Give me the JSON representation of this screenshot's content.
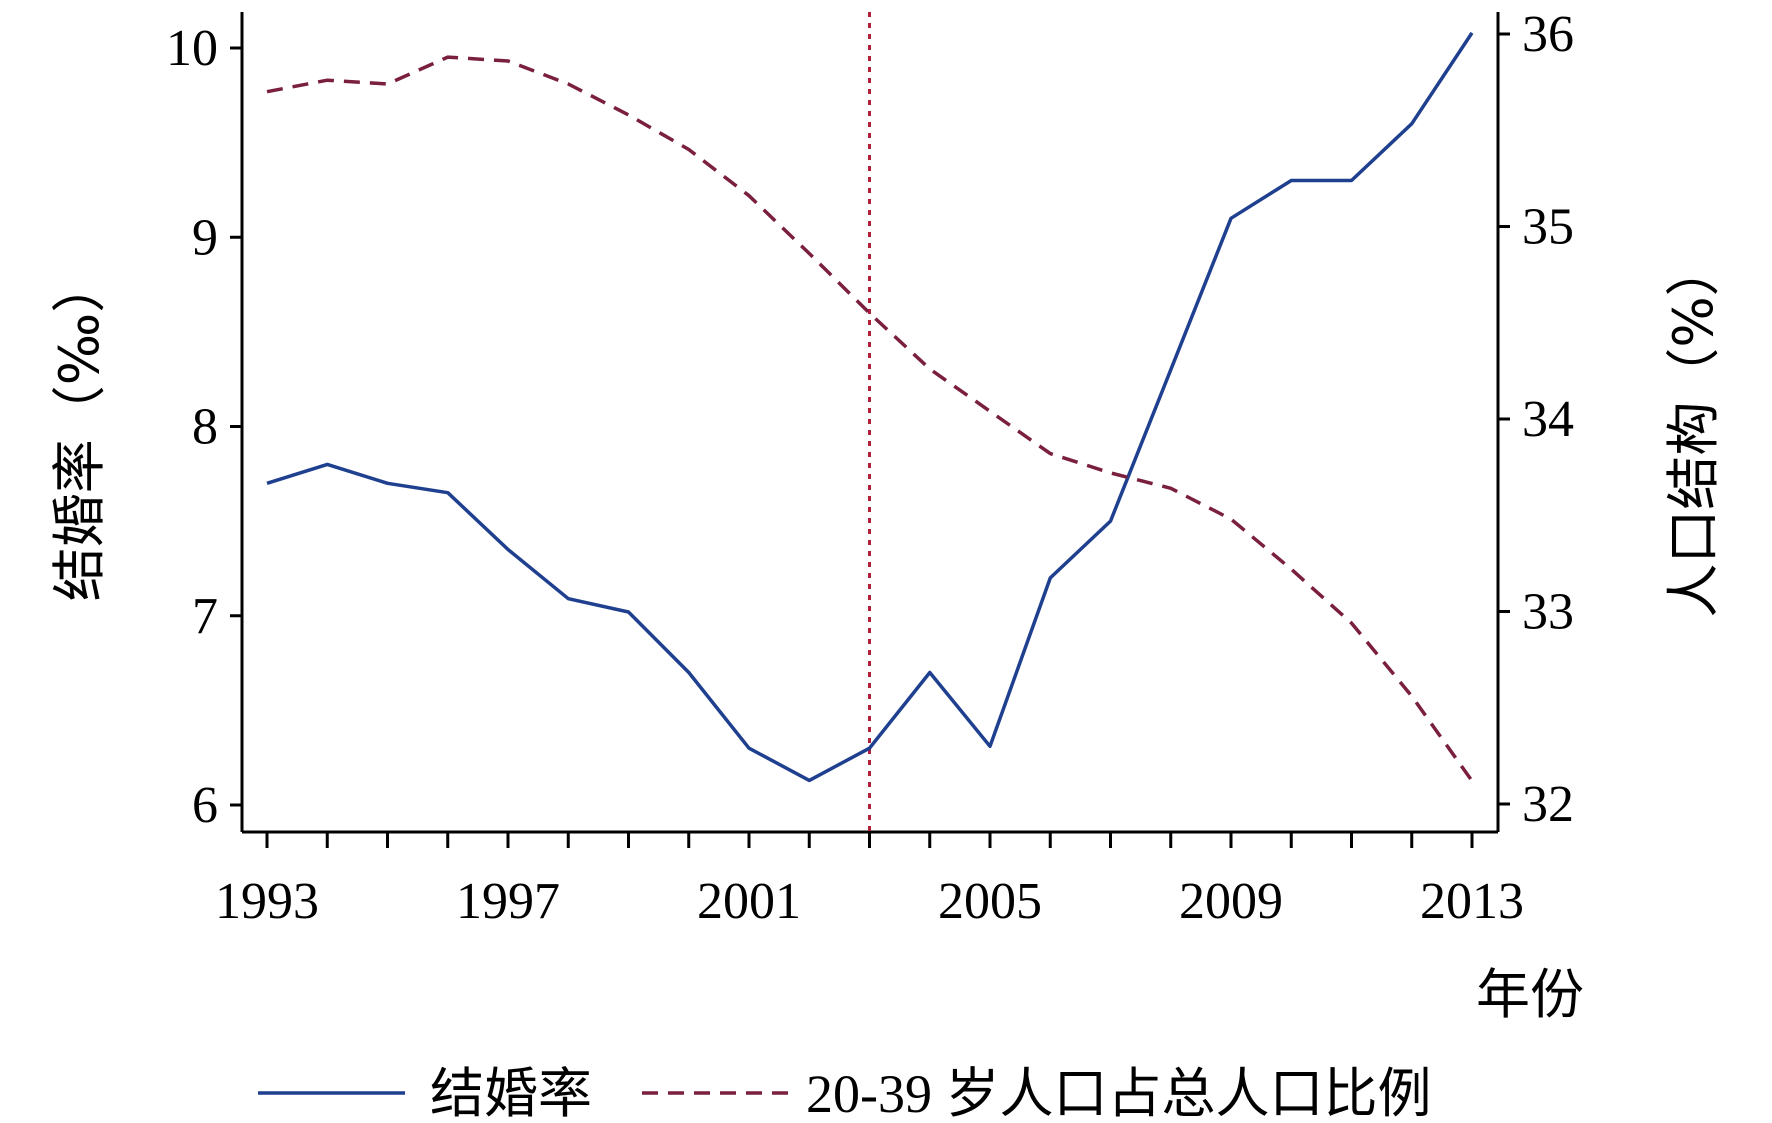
{
  "chart_data": {
    "type": "line",
    "title": "",
    "xlabel": "年份",
    "ylabel_left": "结婚率（‰）",
    "ylabel_right": "人口结构（%）",
    "x": [
      1993,
      1994,
      1995,
      1996,
      1997,
      1998,
      1999,
      2000,
      2001,
      2002,
      2003,
      2004,
      2005,
      2006,
      2007,
      2008,
      2009,
      2010,
      2011,
      2012,
      2013
    ],
    "x_ticks": [
      1993,
      1997,
      2001,
      2005,
      2009,
      2013
    ],
    "x_tick_labels": [
      "1993",
      "1997",
      "2001",
      "2005",
      "2009",
      "2013"
    ],
    "xlim": [
      1993,
      2013
    ],
    "ylim_left": [
      6,
      10
    ],
    "ylim_right": [
      32,
      36
    ],
    "y_ticks_left": [
      6,
      7,
      8,
      9,
      10
    ],
    "y_tick_labels_left": [
      "6",
      "7",
      "8",
      "9",
      "10"
    ],
    "y_ticks_right": [
      32,
      33,
      34,
      35,
      36
    ],
    "y_tick_labels_right": [
      "32",
      "33",
      "34",
      "35",
      "36"
    ],
    "grid": false,
    "legend_position": "bottom",
    "vertical_reference_line": {
      "x": 2003,
      "style": "dotted",
      "color": "#b0203a"
    },
    "series": [
      {
        "name": "结婚率",
        "axis": "left",
        "style": "solid",
        "color": "#1f3f8f",
        "values": [
          7.7,
          7.8,
          7.7,
          7.65,
          7.35,
          7.09,
          7.02,
          6.7,
          6.3,
          6.13,
          6.3,
          6.7,
          6.31,
          7.2,
          7.5,
          8.3,
          9.1,
          9.3,
          9.3,
          9.6,
          10.08
        ]
      },
      {
        "name": "20-39 岁人口占总人口比例",
        "axis": "right",
        "style": "dashed",
        "color": "#7a1f3d",
        "values": [
          35.7,
          35.76,
          35.74,
          35.88,
          35.86,
          35.74,
          35.58,
          35.4,
          35.16,
          34.86,
          34.55,
          34.26,
          34.04,
          33.82,
          33.72,
          33.64,
          33.48,
          33.22,
          32.94,
          32.56,
          32.12
        ]
      }
    ]
  },
  "colors": {
    "axis": "#000000",
    "series_solid": "#1f3f8f",
    "series_dashed": "#7a1f3d",
    "reference_line": "#b0203a"
  }
}
